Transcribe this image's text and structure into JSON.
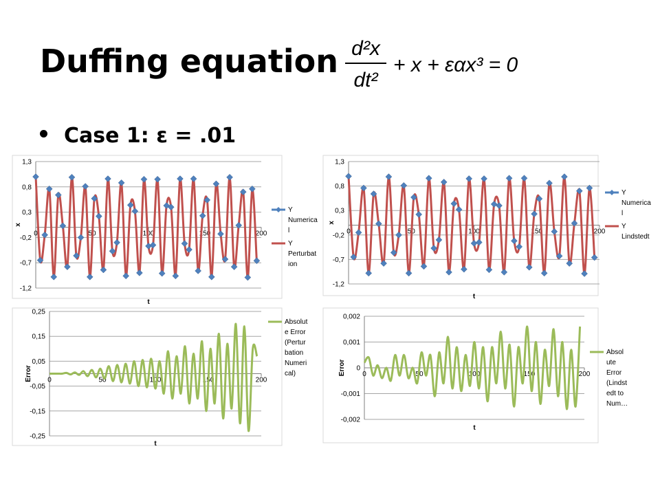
{
  "slide": {
    "title": "Duffing equation",
    "bullet": "Case 1: ε = .01",
    "equation": {
      "numerator": "d²x",
      "denominator": "dt²",
      "rest": "+ x + εαx³ = 0"
    }
  },
  "colors": {
    "numerical": "#4F81BD",
    "approx": "#C0504D",
    "error": "#9BBB59"
  },
  "chart_data": [
    {
      "type": "line",
      "xlabel": "t",
      "ylabel": "x",
      "xticks": [
        "0",
        "50",
        "100",
        "150",
        "200"
      ],
      "yticks": [
        "1,3",
        "0,8",
        "0,3",
        "-0,2",
        "-0,7",
        "-1,2"
      ],
      "xlim": [
        0,
        200
      ],
      "ylim": [
        -1.2,
        1.3
      ],
      "grid": "horizontal",
      "legend_position": "right",
      "legend": [
        "Y Numerical",
        "Y Perturbation"
      ],
      "legend_lines": [
        [
          "Y",
          "Numerica",
          "l"
        ],
        [
          "Y",
          "Perturbat",
          "ion"
        ]
      ],
      "series": [
        {
          "name": "Y Numerical",
          "style": "markers",
          "x": [
            0,
            4,
            8,
            12,
            16,
            20,
            24,
            28,
            32,
            36,
            40,
            44,
            48,
            52,
            56,
            60,
            64,
            68,
            72,
            76,
            80,
            84,
            88,
            92,
            96,
            100,
            104,
            108,
            112,
            116,
            120,
            124,
            128,
            132,
            136,
            140,
            144,
            148,
            152,
            156,
            160,
            164,
            168,
            172,
            176,
            180,
            184,
            188,
            192,
            196
          ],
          "y": [
            1.0,
            -0.65,
            -0.15,
            0.76,
            -0.98,
            0.64,
            0.03,
            -0.78,
            0.99,
            -0.56,
            -0.2,
            0.81,
            -0.98,
            0.57,
            0.22,
            -0.84,
            0.96,
            -0.47,
            -0.3,
            0.88,
            -0.96,
            0.44,
            0.32,
            -0.9,
            0.95,
            -0.37,
            -0.35,
            0.95,
            -0.91,
            0.43,
            0.4,
            -0.96,
            0.96,
            -0.32,
            -0.44,
            0.96,
            -0.86,
            0.23,
            0.54,
            -0.98,
            0.86,
            -0.13,
            -0.63,
            0.99,
            -0.78,
            0.04,
            0.7,
            -0.99,
            0.76,
            -0.66
          ]
        },
        {
          "name": "Y Perturbation",
          "style": "line",
          "x": [
            0,
            4,
            8,
            12,
            16,
            20,
            24,
            28,
            32,
            36,
            40,
            44,
            48,
            52,
            56,
            60,
            64,
            68,
            72,
            76,
            80,
            84,
            88,
            92,
            96,
            100,
            104,
            108,
            112,
            116,
            120,
            124,
            128,
            132,
            136,
            140,
            144,
            148,
            152,
            156,
            160,
            164,
            168,
            172,
            176,
            180,
            184,
            188,
            192,
            196
          ],
          "y": [
            1.0,
            -0.65,
            -0.15,
            0.76,
            -0.98,
            0.64,
            0.03,
            -0.78,
            0.99,
            -0.56,
            -0.2,
            0.81,
            -0.98,
            0.57,
            0.22,
            -0.84,
            0.96,
            -0.47,
            -0.3,
            0.88,
            -0.96,
            0.44,
            0.32,
            -0.9,
            0.95,
            -0.37,
            -0.35,
            0.95,
            -0.91,
            0.43,
            0.4,
            -0.96,
            0.96,
            -0.32,
            -0.44,
            0.96,
            -0.86,
            0.23,
            0.54,
            -0.98,
            0.86,
            -0.13,
            -0.63,
            0.99,
            -0.78,
            0.04,
            0.7,
            -0.99,
            0.76,
            -0.66
          ]
        }
      ]
    },
    {
      "type": "line",
      "xlabel": "t",
      "ylabel": "x",
      "xticks": [
        "0",
        "50",
        "100",
        "150",
        "200"
      ],
      "yticks": [
        "1,3",
        "0,8",
        "0,3",
        "-0,2",
        "-0,7",
        "-1,2"
      ],
      "xlim": [
        0,
        200
      ],
      "ylim": [
        -1.2,
        1.3
      ],
      "grid": "horizontal",
      "legend_position": "right",
      "legend": [
        "Y Numerical",
        "Y Lindstedt"
      ],
      "legend_lines": [
        [
          "Y",
          "Numerica",
          "l"
        ],
        [
          "Y",
          "Lindstedt"
        ]
      ],
      "series": [
        {
          "name": "Y Numerical",
          "style": "markers",
          "x": [
            0,
            4,
            8,
            12,
            16,
            20,
            24,
            28,
            32,
            36,
            40,
            44,
            48,
            52,
            56,
            60,
            64,
            68,
            72,
            76,
            80,
            84,
            88,
            92,
            96,
            100,
            104,
            108,
            112,
            116,
            120,
            124,
            128,
            132,
            136,
            140,
            144,
            148,
            152,
            156,
            160,
            164,
            168,
            172,
            176,
            180,
            184,
            188,
            192,
            196
          ],
          "y": [
            1.0,
            -0.65,
            -0.15,
            0.76,
            -0.98,
            0.64,
            0.03,
            -0.78,
            0.99,
            -0.56,
            -0.2,
            0.81,
            -0.98,
            0.57,
            0.22,
            -0.84,
            0.96,
            -0.47,
            -0.3,
            0.88,
            -0.96,
            0.44,
            0.32,
            -0.9,
            0.95,
            -0.37,
            -0.35,
            0.95,
            -0.91,
            0.43,
            0.4,
            -0.96,
            0.96,
            -0.32,
            -0.44,
            0.96,
            -0.86,
            0.23,
            0.54,
            -0.98,
            0.86,
            -0.13,
            -0.63,
            0.99,
            -0.78,
            0.04,
            0.7,
            -0.99,
            0.76,
            -0.66
          ]
        },
        {
          "name": "Y Lindstedt",
          "style": "line",
          "x": [
            0,
            4,
            8,
            12,
            16,
            20,
            24,
            28,
            32,
            36,
            40,
            44,
            48,
            52,
            56,
            60,
            64,
            68,
            72,
            76,
            80,
            84,
            88,
            92,
            96,
            100,
            104,
            108,
            112,
            116,
            120,
            124,
            128,
            132,
            136,
            140,
            144,
            148,
            152,
            156,
            160,
            164,
            168,
            172,
            176,
            180,
            184,
            188,
            192,
            196
          ],
          "y": [
            1.0,
            -0.65,
            -0.15,
            0.76,
            -0.98,
            0.64,
            0.03,
            -0.78,
            0.99,
            -0.56,
            -0.2,
            0.81,
            -0.98,
            0.57,
            0.22,
            -0.84,
            0.96,
            -0.47,
            -0.3,
            0.88,
            -0.96,
            0.44,
            0.32,
            -0.9,
            0.95,
            -0.37,
            -0.35,
            0.95,
            -0.91,
            0.43,
            0.4,
            -0.96,
            0.96,
            -0.32,
            -0.44,
            0.96,
            -0.86,
            0.23,
            0.54,
            -0.98,
            0.86,
            -0.13,
            -0.63,
            0.99,
            -0.78,
            0.04,
            0.7,
            -0.99,
            0.76,
            -0.66
          ]
        }
      ]
    },
    {
      "type": "line",
      "xlabel": "t",
      "ylabel": "Error",
      "xticks": [
        "0",
        "50",
        "100",
        "150",
        "200"
      ],
      "yticks": [
        "0,25",
        "0,15",
        "0,05",
        "-0,05",
        "-0,15",
        "-0,25"
      ],
      "xlim": [
        0,
        200
      ],
      "ylim": [
        -0.25,
        0.25
      ],
      "grid": "horizontal",
      "legend_position": "right",
      "legend": [
        "Absolute Error (Perturbation Numerical)"
      ],
      "legend_lines": [
        [
          "Absolut",
          "e Error",
          "(Pertur",
          "bation",
          "Numeri",
          "cal)"
        ]
      ],
      "series": [
        {
          "name": "Absolute Error (Perturbation Numerical)",
          "style": "line",
          "x": [
            0,
            4,
            8,
            12,
            16,
            20,
            24,
            28,
            32,
            36,
            40,
            44,
            48,
            52,
            56,
            60,
            64,
            68,
            72,
            76,
            80,
            84,
            88,
            92,
            96,
            100,
            104,
            108,
            112,
            116,
            120,
            124,
            128,
            132,
            136,
            140,
            144,
            148,
            152,
            156,
            160,
            164,
            168,
            172,
            176,
            180,
            184,
            188,
            192,
            196
          ],
          "y": [
            0.0,
            0.0,
            0.0,
            0.0,
            0.003,
            -0.003,
            0.005,
            -0.005,
            0.01,
            -0.01,
            0.015,
            -0.015,
            0.02,
            -0.02,
            0.03,
            -0.03,
            0.035,
            -0.035,
            0.04,
            -0.04,
            0.05,
            -0.05,
            0.055,
            -0.055,
            0.06,
            -0.06,
            0.05,
            -0.08,
            0.09,
            -0.1,
            0.07,
            -0.08,
            0.11,
            -0.12,
            0.08,
            -0.1,
            0.13,
            -0.15,
            0.1,
            -0.12,
            0.16,
            -0.18,
            0.12,
            -0.14,
            0.2,
            -0.2,
            0.19,
            -0.23,
            0.1,
            0.07
          ]
        }
      ]
    },
    {
      "type": "line",
      "xlabel": "t",
      "ylabel": "Error",
      "xticks": [
        "0",
        "50",
        "100",
        "150",
        "200"
      ],
      "yticks": [
        "0,002",
        "0,001",
        "0",
        "-0,001",
        "-0,002"
      ],
      "xlim": [
        0,
        200
      ],
      "ylim": [
        -0.002,
        0.002
      ],
      "grid": "horizontal",
      "legend_position": "right",
      "legend": [
        "Absolute Error (Lindstedt to Num…"
      ],
      "legend_lines": [
        [
          "Absol",
          "ute",
          "Error",
          "(Lindst",
          "edt to",
          "Num…"
        ]
      ],
      "series": [
        {
          "name": "Absolute Error (Lindstedt to Num…",
          "style": "line",
          "x": [
            0,
            4,
            8,
            12,
            16,
            20,
            24,
            28,
            32,
            36,
            40,
            44,
            48,
            52,
            56,
            60,
            64,
            68,
            72,
            76,
            80,
            84,
            88,
            92,
            96,
            100,
            104,
            108,
            112,
            116,
            120,
            124,
            128,
            132,
            136,
            140,
            144,
            148,
            152,
            156,
            160,
            164,
            168,
            172,
            176,
            180,
            184,
            188,
            192,
            196
          ],
          "y": [
            0.0002,
            0.0004,
            -0.0003,
            0.0001,
            -0.0004,
            0.0,
            -0.0005,
            0.0005,
            -0.0003,
            0.0005,
            -0.0004,
            0.0,
            -0.0006,
            0.0006,
            -0.0003,
            0.0005,
            -0.0011,
            0.0006,
            -0.0006,
            0.0012,
            -0.0008,
            0.0008,
            -0.0009,
            0.0005,
            -0.0007,
            0.001,
            -0.0008,
            0.0008,
            -0.0013,
            0.0008,
            -0.0006,
            0.0014,
            -0.0008,
            0.0009,
            -0.0015,
            0.0008,
            -0.0006,
            0.0016,
            -0.0009,
            0.001,
            -0.0014,
            0.0007,
            -0.0007,
            0.0015,
            -0.0011,
            0.001,
            -0.0016,
            0.0007,
            -0.0015,
            0.0016
          ]
        }
      ]
    }
  ]
}
